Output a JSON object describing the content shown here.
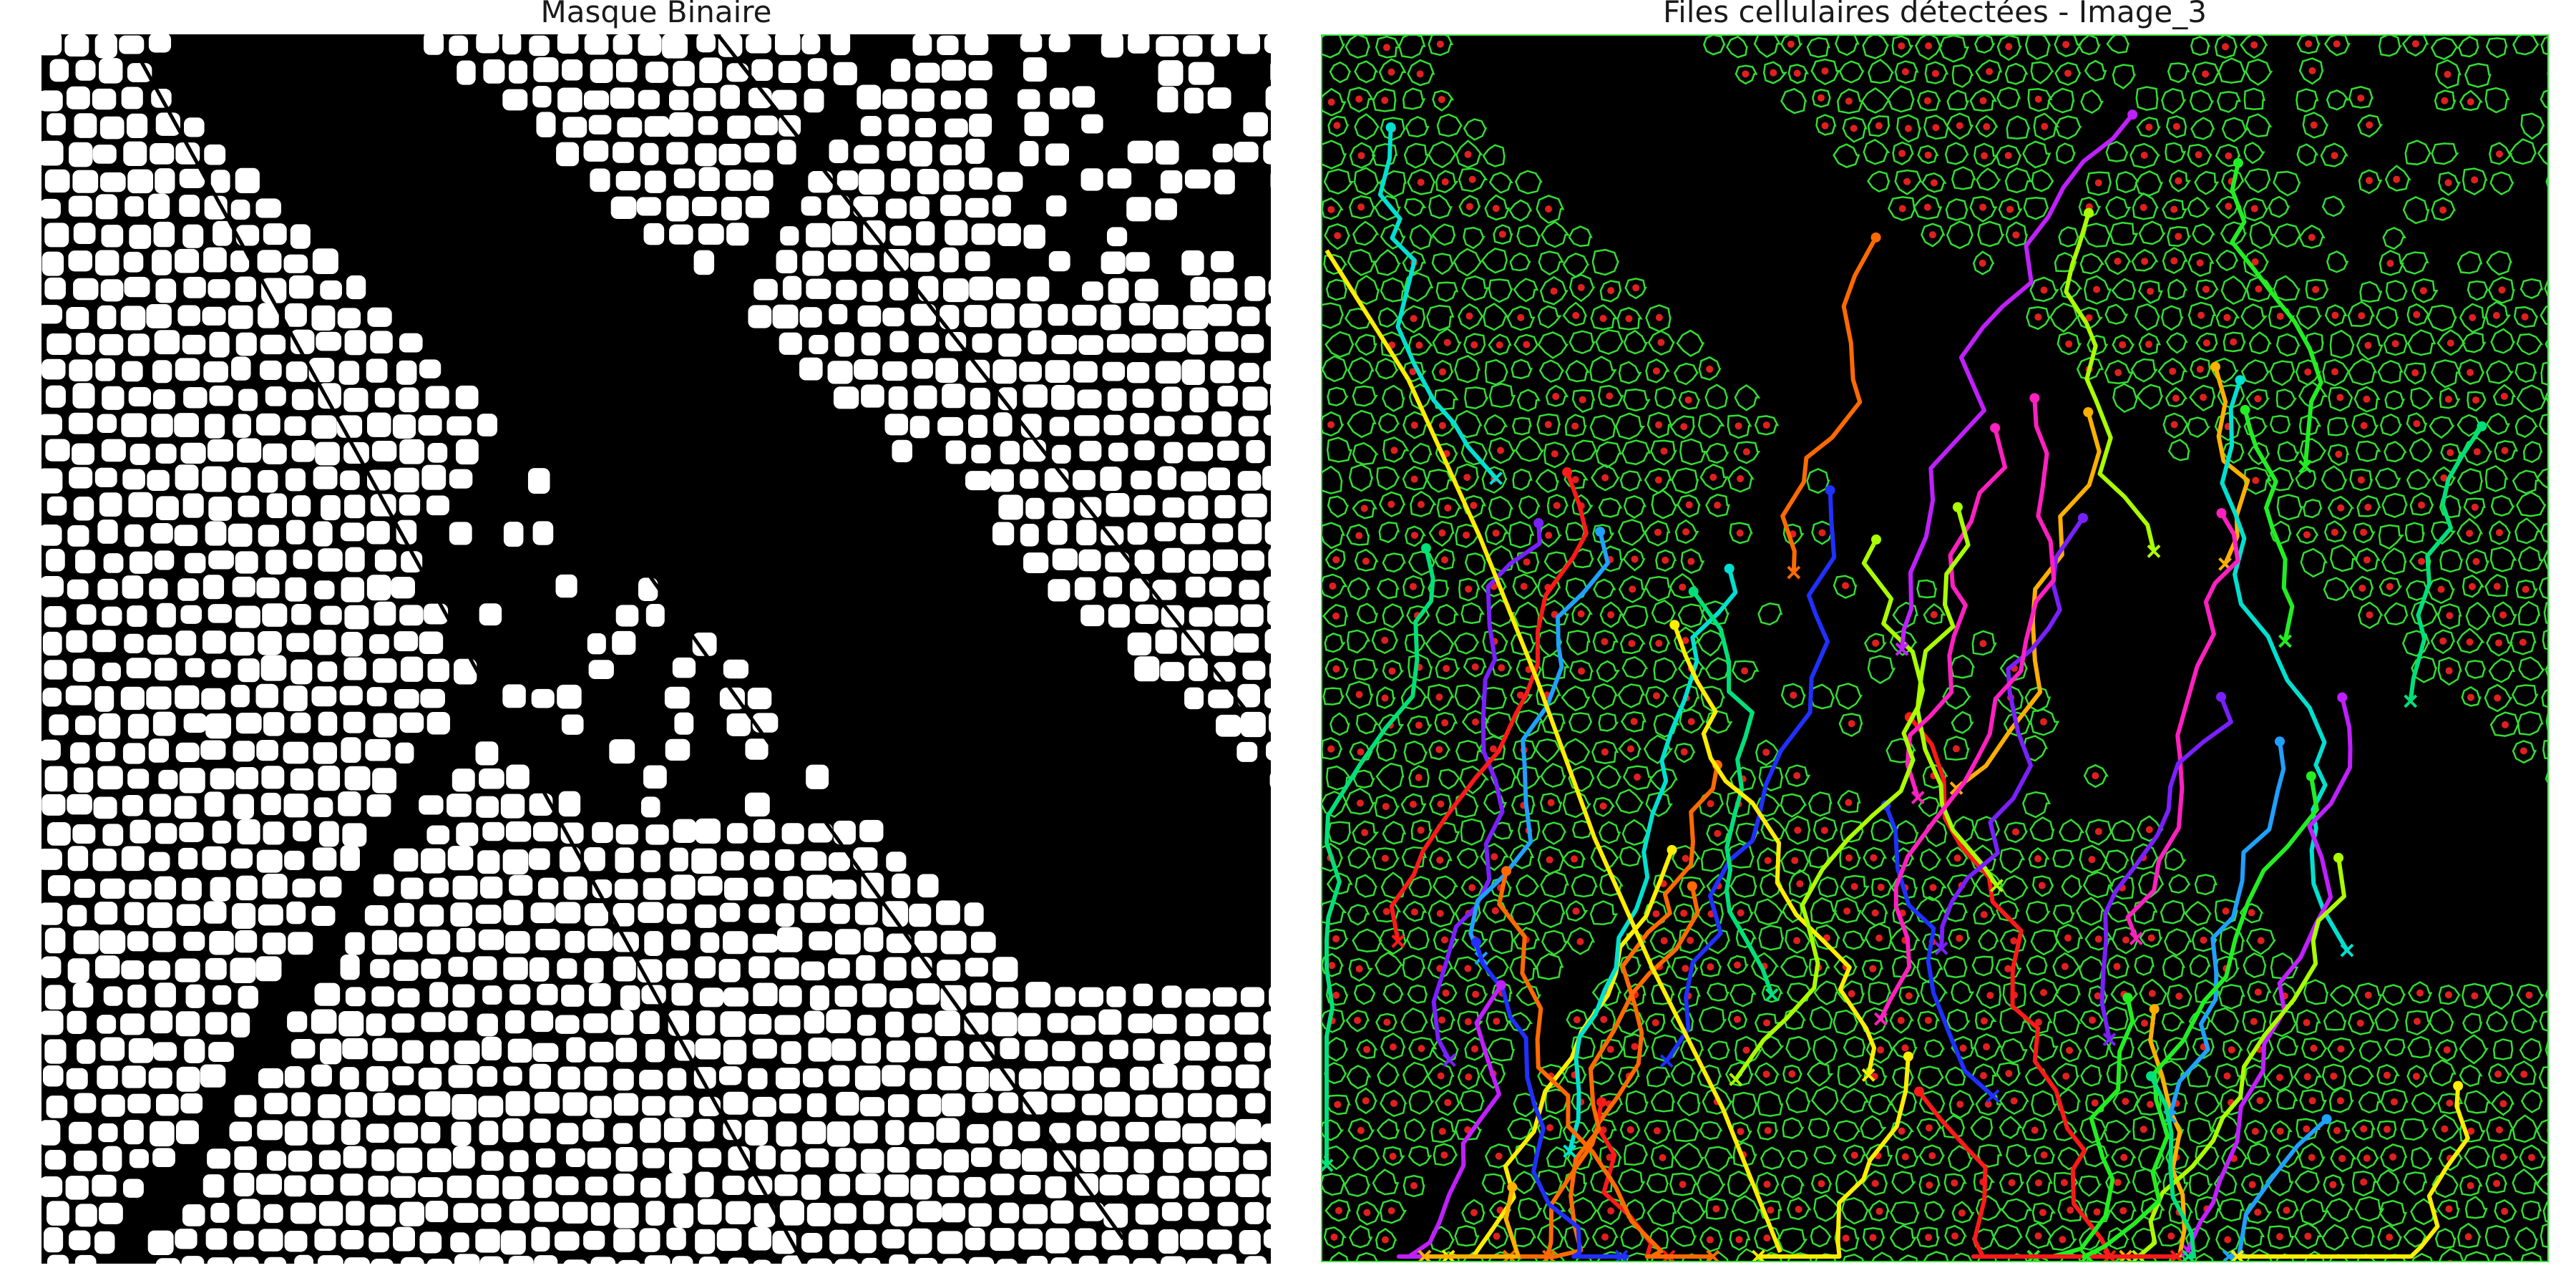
{
  "panels": {
    "left": {
      "title": "Masque Binaire"
    },
    "right": {
      "title": "Files cellulaires détectées - Image_3"
    }
  },
  "colors": {
    "mask_foreground": "#ffffff",
    "mask_background": "#000000",
    "cell_contour": "#33dd33",
    "centroid": "#e02020",
    "file_colors": [
      "#ff1a1a",
      "#ff6a00",
      "#ffb000",
      "#ffee00",
      "#aaff00",
      "#22ee22",
      "#00e07a",
      "#00e0d0",
      "#20a0ff",
      "#2030ff",
      "#7a20ff",
      "#c020ff",
      "#ff20c0"
    ]
  },
  "icons": {
    "file_start_marker": "dot-icon",
    "file_end_marker": "x-icon"
  }
}
